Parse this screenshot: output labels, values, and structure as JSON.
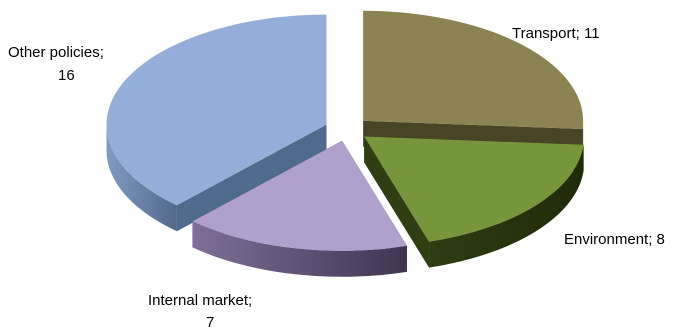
{
  "chart_data": {
    "type": "pie",
    "title": "",
    "legend": "none",
    "slices": [
      {
        "label": "Transport",
        "value": 11,
        "data_label": "Transport; 11",
        "color": "#8C8353",
        "dark": "#4A4426"
      },
      {
        "label": "Environment",
        "value": 8,
        "data_label": "Environment; 8",
        "color": "#77963B",
        "dark": "#2F3F12"
      },
      {
        "label": "Internal market",
        "value": 7,
        "data_label_lines": [
          "Internal market;",
          "7"
        ],
        "color": "#AFA0CC",
        "dark": "#4B4060"
      },
      {
        "label": "Other policies",
        "value": 16,
        "data_label_lines": [
          "Other policies;",
          "16"
        ],
        "color": "#93AFD9",
        "dark": "#4F6A8C"
      }
    ]
  }
}
